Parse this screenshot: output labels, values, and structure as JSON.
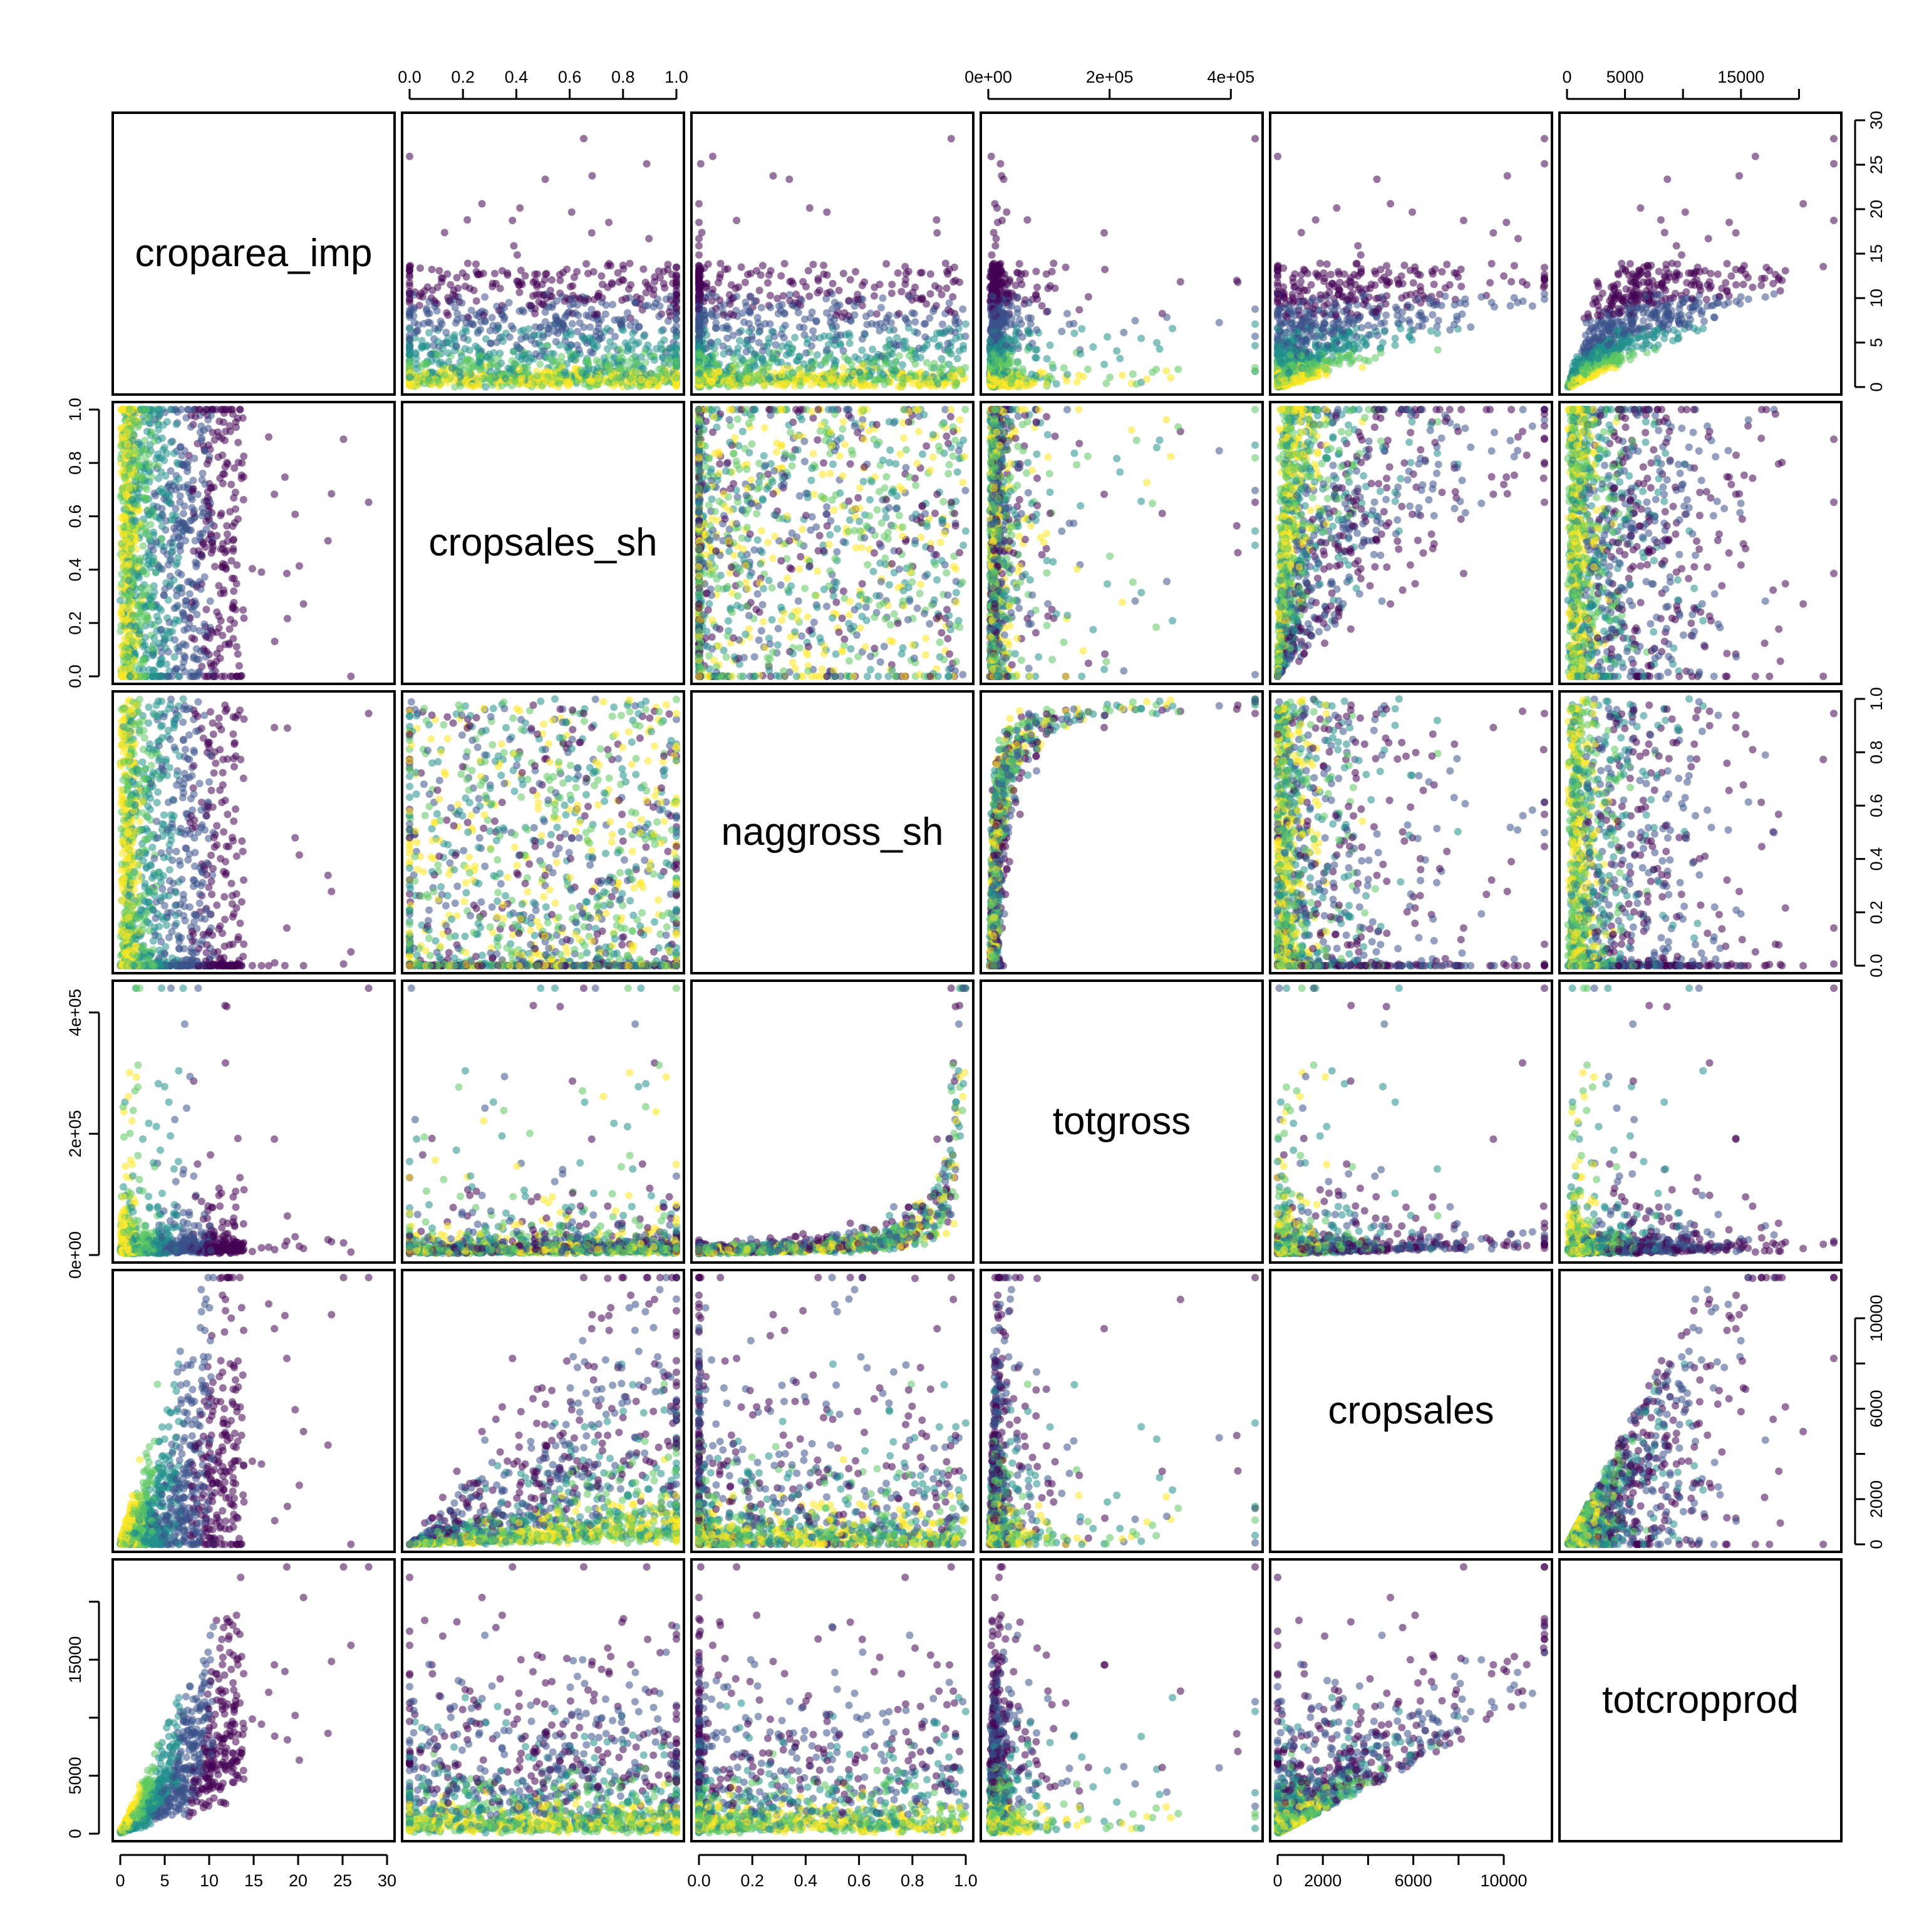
{
  "chart_data": {
    "type": "scatter",
    "subtype": "scatterplot-matrix",
    "title": "",
    "variables": [
      "croparea_imp",
      "cropsales_sh",
      "naggross_sh",
      "totgross",
      "cropsales",
      "totcropprod"
    ],
    "ranges": {
      "croparea_imp": [
        0,
        30
      ],
      "cropsales_sh": [
        0,
        1
      ],
      "naggross_sh": [
        0,
        1
      ],
      "totgross": [
        0,
        440000
      ],
      "cropsales": [
        0,
        11800
      ],
      "totcropprod": [
        0,
        23000
      ]
    },
    "ticks": {
      "croparea_imp": [
        {
          "value": 0,
          "label": "0"
        },
        {
          "value": 5,
          "label": "5"
        },
        {
          "value": 10,
          "label": "10"
        },
        {
          "value": 15,
          "label": "15"
        },
        {
          "value": 20,
          "label": "20"
        },
        {
          "value": 25,
          "label": "25"
        },
        {
          "value": 30,
          "label": "30"
        }
      ],
      "cropsales_sh": [
        {
          "value": 0,
          "label": "0.0"
        },
        {
          "value": 0.2,
          "label": "0.2"
        },
        {
          "value": 0.4,
          "label": "0.4"
        },
        {
          "value": 0.6,
          "label": "0.6"
        },
        {
          "value": 0.8,
          "label": "0.8"
        },
        {
          "value": 1,
          "label": "1.0"
        }
      ],
      "naggross_sh": [
        {
          "value": 0,
          "label": "0.0"
        },
        {
          "value": 0.2,
          "label": "0.2"
        },
        {
          "value": 0.4,
          "label": "0.4"
        },
        {
          "value": 0.6,
          "label": "0.6"
        },
        {
          "value": 0.8,
          "label": "0.8"
        },
        {
          "value": 1,
          "label": "1.0"
        }
      ],
      "totgross": [
        {
          "value": 0,
          "label": "0e+00"
        },
        {
          "value": 200000,
          "label": "2e+05"
        },
        {
          "value": 400000,
          "label": "4e+05"
        }
      ],
      "cropsales": [
        {
          "value": 0,
          "label": "0"
        },
        {
          "value": 2000,
          "label": "2000"
        },
        {
          "value": 4000,
          "label": ""
        },
        {
          "value": 6000,
          "label": "6000"
        },
        {
          "value": 8000,
          "label": ""
        },
        {
          "value": 10000,
          "label": "10000"
        }
      ],
      "totcropprod": [
        {
          "value": 0,
          "label": "0"
        },
        {
          "value": 5000,
          "label": "5000"
        },
        {
          "value": 10000,
          "label": ""
        },
        {
          "value": 15000,
          "label": "15000"
        },
        {
          "value": 20000,
          "label": ""
        }
      ]
    },
    "axis_sides": {
      "top": [
        "cropsales_sh",
        "totgross",
        "totcropprod"
      ],
      "bottom": [
        "croparea_imp",
        "naggross_sh",
        "cropsales"
      ],
      "left": [
        "cropsales_sh",
        "totgross",
        "totcropprod"
      ],
      "right": [
        "croparea_imp",
        "naggross_sh",
        "cropsales"
      ]
    },
    "color_palette": [
      "#440154",
      "#3b528b",
      "#21908c",
      "#5ec962",
      "#fde725"
    ],
    "point_opacity": 0.55,
    "point_shape": "filled circle",
    "grid": false,
    "legend": "none",
    "n_points": 1400,
    "random_seed": 20240611
  }
}
